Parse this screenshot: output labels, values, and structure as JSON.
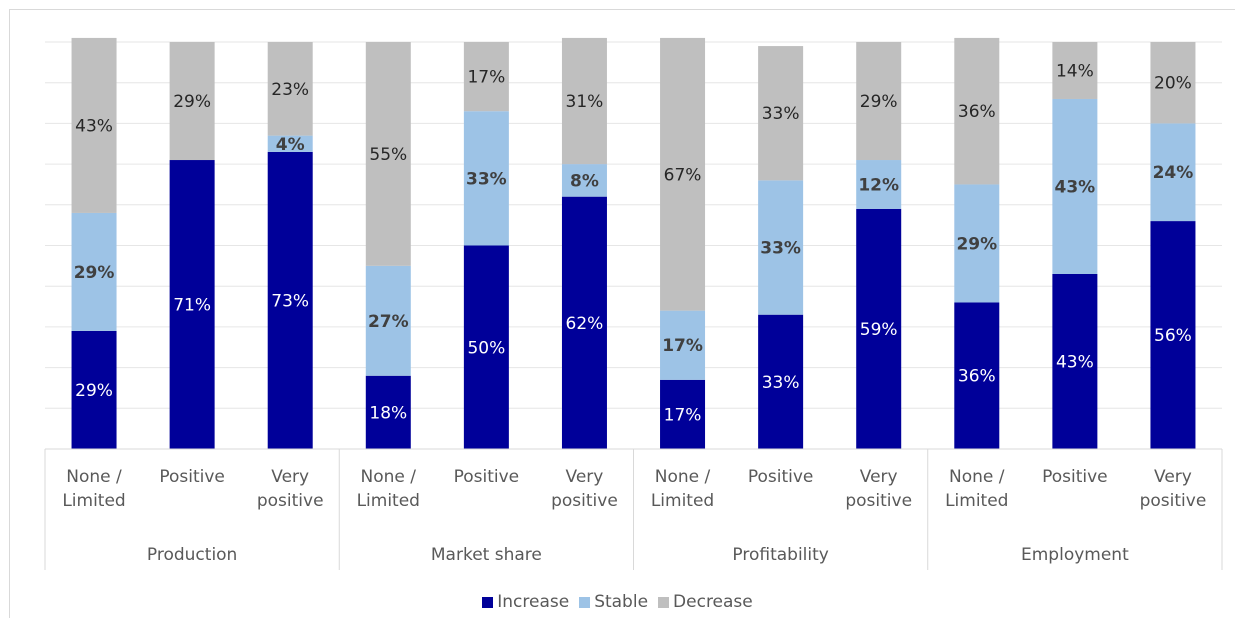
{
  "chart_data": {
    "type": "stacked_bar",
    "groups": [
      "Production",
      "Market share",
      "Profitability",
      "Employment"
    ],
    "categories": [
      "None / Limited",
      "Positive",
      "Very positive",
      "None / Limited",
      "Positive",
      "Very positive",
      "None / Limited",
      "Positive",
      "Very positive",
      "None / Limited",
      "Positive",
      "Very positive"
    ],
    "series": [
      {
        "name": "Increase",
        "color": "#000099",
        "label_color": "#ffffff",
        "label_bold": false,
        "values": [
          29,
          71,
          73,
          18,
          50,
          62,
          17,
          33,
          59,
          36,
          43,
          56
        ],
        "value_labels": [
          "29%",
          "71%",
          "73%",
          "18%",
          "50%",
          "62%",
          "17%",
          "33%",
          "59%",
          "36%",
          "43%",
          "56%"
        ]
      },
      {
        "name": "Stable",
        "color": "#9dc3e6",
        "label_color": "#404040",
        "label_bold": true,
        "values": [
          29,
          null,
          4,
          27,
          33,
          8,
          17,
          33,
          12,
          29,
          43,
          24
        ],
        "value_labels": [
          "29%",
          null,
          "4%",
          "27%",
          "33%",
          "8%",
          "17%",
          "33%",
          "12%",
          "29%",
          "43%",
          "24%"
        ]
      },
      {
        "name": "Decrease",
        "color": "#bfbfbf",
        "label_color": "#262626",
        "label_bold": false,
        "values": [
          43,
          29,
          23,
          55,
          17,
          31,
          67,
          33,
          29,
          36,
          14,
          20
        ],
        "value_labels": [
          "43%",
          "29%",
          "23%",
          "55%",
          "17%",
          "31%",
          "67%",
          "33%",
          "29%",
          "36%",
          "14%",
          "20%"
        ]
      }
    ],
    "ylim": [
      0,
      100
    ],
    "yticks": [
      0,
      10,
      20,
      30,
      40,
      50,
      60,
      70,
      80,
      90,
      100
    ],
    "grid": true,
    "legend": "bottom"
  }
}
